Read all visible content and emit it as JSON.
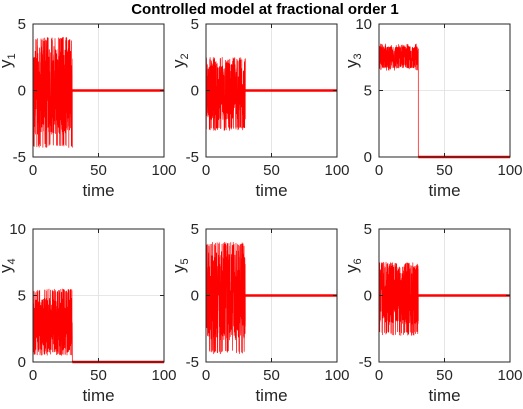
{
  "title": "Controlled model at fractional order 1",
  "colors": {
    "series": "#ff0000",
    "axis": "#262626",
    "grid": "#dfdfdf"
  },
  "chart_data": [
    {
      "type": "line",
      "ylabel_base": "y",
      "ylabel_sub": "1",
      "xlabel": "time",
      "xlim": [
        0,
        100
      ],
      "ylim": [
        -5,
        5
      ],
      "xticks": [
        "0",
        "50",
        "100"
      ],
      "yticks": [
        "5",
        "0",
        "-5"
      ],
      "grid": true,
      "switch_time": 30,
      "series": [
        {
          "noise_phase": {
            "x": [
              0,
              30
            ],
            "y_min": -4.3,
            "y_max": 4.0,
            "y_center": 0.0
          },
          "steady_phase": {
            "x": [
              30,
              100
            ],
            "y": 0
          }
        }
      ]
    },
    {
      "type": "line",
      "ylabel_base": "y",
      "ylabel_sub": "2",
      "xlabel": "time",
      "xlim": [
        0,
        100
      ],
      "ylim": [
        -5,
        5
      ],
      "xticks": [
        "0",
        "50",
        "100"
      ],
      "yticks": [
        "5",
        "0",
        "-5"
      ],
      "grid": true,
      "switch_time": 30,
      "series": [
        {
          "noise_phase": {
            "x": [
              0,
              30
            ],
            "y_min": -3.0,
            "y_max": 2.5,
            "y_center": 0.0
          },
          "steady_phase": {
            "x": [
              30,
              100
            ],
            "y": 0
          }
        }
      ]
    },
    {
      "type": "line",
      "ylabel_base": "y",
      "ylabel_sub": "3",
      "xlabel": "time",
      "xlim": [
        0,
        100
      ],
      "ylim": [
        0,
        10
      ],
      "xticks": [
        "0",
        "50",
        "100"
      ],
      "yticks": [
        "10",
        "5",
        "0"
      ],
      "grid": true,
      "switch_time": 30,
      "series": [
        {
          "noise_phase": {
            "x": [
              0,
              30
            ],
            "y_min": 6.5,
            "y_max": 8.5,
            "y_center": 7.5
          },
          "steady_phase": {
            "x": [
              30,
              100
            ],
            "y": 0
          }
        }
      ]
    },
    {
      "type": "line",
      "ylabel_base": "y",
      "ylabel_sub": "4",
      "xlabel": "time",
      "xlim": [
        0,
        100
      ],
      "ylim": [
        0,
        10
      ],
      "xticks": [
        "0",
        "50",
        "100"
      ],
      "yticks": [
        "10",
        "5",
        "0"
      ],
      "grid": true,
      "switch_time": 30,
      "series": [
        {
          "noise_phase": {
            "x": [
              0,
              30
            ],
            "y_min": 0.5,
            "y_max": 5.5,
            "y_center": 2.8
          },
          "steady_phase": {
            "x": [
              30,
              100
            ],
            "y": 0
          }
        }
      ]
    },
    {
      "type": "line",
      "ylabel_base": "y",
      "ylabel_sub": "5",
      "xlabel": "time",
      "xlim": [
        0,
        100
      ],
      "ylim": [
        -5,
        5
      ],
      "xticks": [
        "0",
        "50",
        "100"
      ],
      "yticks": [
        "5",
        "0",
        "-5"
      ],
      "grid": true,
      "switch_time": 30,
      "series": [
        {
          "noise_phase": {
            "x": [
              0,
              30
            ],
            "y_min": -4.4,
            "y_max": 4.0,
            "y_center": 0.0
          },
          "steady_phase": {
            "x": [
              30,
              100
            ],
            "y": 0
          }
        }
      ]
    },
    {
      "type": "line",
      "ylabel_base": "y",
      "ylabel_sub": "6",
      "xlabel": "time",
      "xlim": [
        0,
        100
      ],
      "ylim": [
        -5,
        5
      ],
      "xticks": [
        "0",
        "50",
        "100"
      ],
      "yticks": [
        "5",
        "0",
        "-5"
      ],
      "grid": true,
      "switch_time": 30,
      "series": [
        {
          "noise_phase": {
            "x": [
              0,
              30
            ],
            "y_min": -3.0,
            "y_max": 2.5,
            "y_center": 0.0
          },
          "steady_phase": {
            "x": [
              30,
              100
            ],
            "y": 0
          }
        }
      ]
    }
  ]
}
